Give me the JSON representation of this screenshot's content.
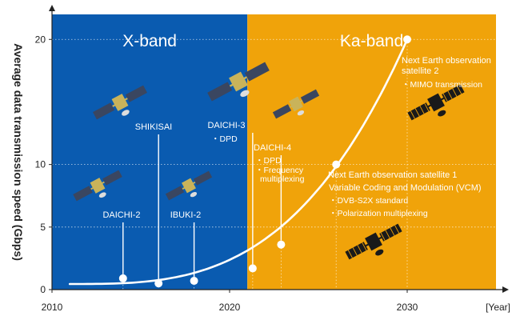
{
  "chart_data": {
    "type": "line",
    "ylabel": "Average data transmission speed (Gbps)",
    "xlabel": "[Year]",
    "xlim": [
      2010,
      2035
    ],
    "ylim": [
      0,
      22
    ],
    "x_ticks": [
      2010,
      2020,
      2030
    ],
    "y_ticks": [
      0,
      5,
      10,
      20
    ],
    "bands": [
      {
        "label": "X-band",
        "from": 2010,
        "to": 2021,
        "color": "#0a5bb0"
      },
      {
        "label": "Ka-band",
        "from": 2021,
        "to": 2035,
        "color": "#f0a30a"
      }
    ],
    "curve": {
      "color": "#ffffff"
    },
    "points": [
      {
        "x": 2014,
        "y": 0.9,
        "label": "DAICHI-2",
        "notes": []
      },
      {
        "x": 2016,
        "y": 0.5,
        "label": "SHIKISAI",
        "notes": []
      },
      {
        "x": 2018,
        "y": 0.7,
        "label": "IBUKI-2",
        "notes": []
      },
      {
        "x": 2021.3,
        "y": 1.7,
        "label": "DAICHI-3",
        "notes": [
          "DPD"
        ]
      },
      {
        "x": 2022.9,
        "y": 3.6,
        "label": "DAICHI-4",
        "notes": [
          "DPD",
          "Frequency multiplexing"
        ]
      },
      {
        "x": 2026,
        "y": 10,
        "label": "Next Earth observation satellite 1",
        "notes": [
          "Variable Coding and Modulation (VCM)",
          "DVB-S2X standard",
          "Polarization multiplexing"
        ]
      },
      {
        "x": 2030,
        "y": 20,
        "label": "Next Earth observation satellite 2",
        "notes": [
          "MIMO transmission"
        ]
      }
    ]
  }
}
